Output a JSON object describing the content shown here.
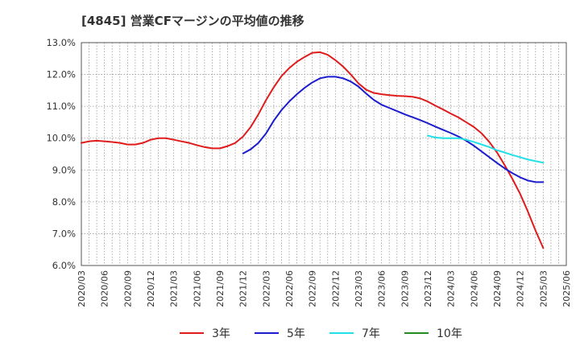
{
  "chart_data": {
    "type": "line",
    "title": "[4845]  営業CFマージンの平均値の推移",
    "xlabel": "",
    "ylabel": "",
    "ylim": [
      6.0,
      13.0
    ],
    "y_ticks": [
      6.0,
      7.0,
      8.0,
      9.0,
      10.0,
      11.0,
      12.0,
      13.0
    ],
    "y_tick_labels": [
      "6.0%",
      "7.0%",
      "8.0%",
      "9.0%",
      "10.0%",
      "11.0%",
      "12.0%",
      "13.0%"
    ],
    "x_ticks": [
      "2020/03",
      "2020/06",
      "2020/09",
      "2020/12",
      "2021/03",
      "2021/06",
      "2021/09",
      "2021/12",
      "2022/03",
      "2022/06",
      "2022/09",
      "2022/12",
      "2023/03",
      "2023/06",
      "2023/09",
      "2023/12",
      "2024/03",
      "2024/06",
      "2024/09",
      "2024/12",
      "2025/03",
      "2025/06"
    ],
    "grid": true,
    "legend_position": "bottom",
    "series": [
      {
        "name": "3年",
        "color": "#e01b1b",
        "x": [
          "2020/03",
          "2020/04",
          "2020/05",
          "2020/06",
          "2020/07",
          "2020/08",
          "2020/09",
          "2020/10",
          "2020/11",
          "2020/12",
          "2021/01",
          "2021/02",
          "2021/03",
          "2021/04",
          "2021/05",
          "2021/06",
          "2021/07",
          "2021/08",
          "2021/09",
          "2021/10",
          "2021/11",
          "2021/12",
          "2022/01",
          "2022/02",
          "2022/03",
          "2022/04",
          "2022/05",
          "2022/06",
          "2022/07",
          "2022/08",
          "2022/09",
          "2022/10",
          "2022/11",
          "2022/12",
          "2023/01",
          "2023/02",
          "2023/03",
          "2023/04",
          "2023/05",
          "2023/06",
          "2023/07",
          "2023/08",
          "2023/09",
          "2023/10",
          "2023/11",
          "2023/12",
          "2024/01",
          "2024/02",
          "2024/03",
          "2024/04",
          "2024/05",
          "2024/06",
          "2024/07",
          "2024/08",
          "2024/09",
          "2024/10",
          "2024/11",
          "2024/12",
          "2025/01",
          "2025/02",
          "2025/03"
        ],
        "values": [
          9.85,
          9.9,
          9.92,
          9.9,
          9.88,
          9.85,
          9.8,
          9.8,
          9.85,
          9.95,
          10.0,
          10.0,
          9.95,
          9.9,
          9.85,
          9.78,
          9.72,
          9.68,
          9.68,
          9.75,
          9.85,
          10.05,
          10.35,
          10.75,
          11.2,
          11.6,
          11.95,
          12.2,
          12.4,
          12.55,
          12.68,
          12.7,
          12.62,
          12.45,
          12.25,
          12.0,
          11.72,
          11.52,
          11.42,
          11.38,
          11.35,
          11.33,
          11.32,
          11.3,
          11.25,
          11.15,
          11.02,
          10.9,
          10.77,
          10.65,
          10.5,
          10.35,
          10.15,
          9.88,
          9.55,
          9.15,
          8.72,
          8.25,
          7.7,
          7.1,
          6.55
        ]
      },
      {
        "name": "5年",
        "color": "#1c1ccf",
        "x": [
          "2021/12",
          "2022/01",
          "2022/02",
          "2022/03",
          "2022/04",
          "2022/05",
          "2022/06",
          "2022/07",
          "2022/08",
          "2022/09",
          "2022/10",
          "2022/11",
          "2022/12",
          "2023/01",
          "2023/02",
          "2023/03",
          "2023/04",
          "2023/05",
          "2023/06",
          "2023/07",
          "2023/08",
          "2023/09",
          "2023/10",
          "2023/11",
          "2023/12",
          "2024/01",
          "2024/02",
          "2024/03",
          "2024/04",
          "2024/05",
          "2024/06",
          "2024/07",
          "2024/08",
          "2024/09",
          "2024/10",
          "2024/11",
          "2024/12",
          "2025/01",
          "2025/02",
          "2025/03"
        ],
        "values": [
          9.52,
          9.65,
          9.85,
          10.15,
          10.55,
          10.88,
          11.15,
          11.38,
          11.58,
          11.75,
          11.88,
          11.93,
          11.93,
          11.88,
          11.78,
          11.62,
          11.4,
          11.2,
          11.05,
          10.95,
          10.85,
          10.75,
          10.66,
          10.57,
          10.47,
          10.36,
          10.26,
          10.16,
          10.05,
          9.92,
          9.76,
          9.58,
          9.4,
          9.22,
          9.05,
          8.9,
          8.77,
          8.67,
          8.62,
          8.62
        ]
      },
      {
        "name": "7年",
        "color": "#22e0e8",
        "x": [
          "2023/12",
          "2024/01",
          "2024/02",
          "2024/03",
          "2024/04",
          "2024/05",
          "2024/06",
          "2024/07",
          "2024/08",
          "2024/09",
          "2024/10",
          "2024/11",
          "2024/12",
          "2025/01",
          "2025/02",
          "2025/03"
        ],
        "values": [
          10.08,
          10.02,
          10.0,
          10.0,
          10.0,
          9.95,
          9.88,
          9.8,
          9.72,
          9.62,
          9.55,
          9.47,
          9.4,
          9.33,
          9.28,
          9.23
        ]
      },
      {
        "name": "10年",
        "color": "#228b22",
        "x": [],
        "values": []
      }
    ]
  }
}
